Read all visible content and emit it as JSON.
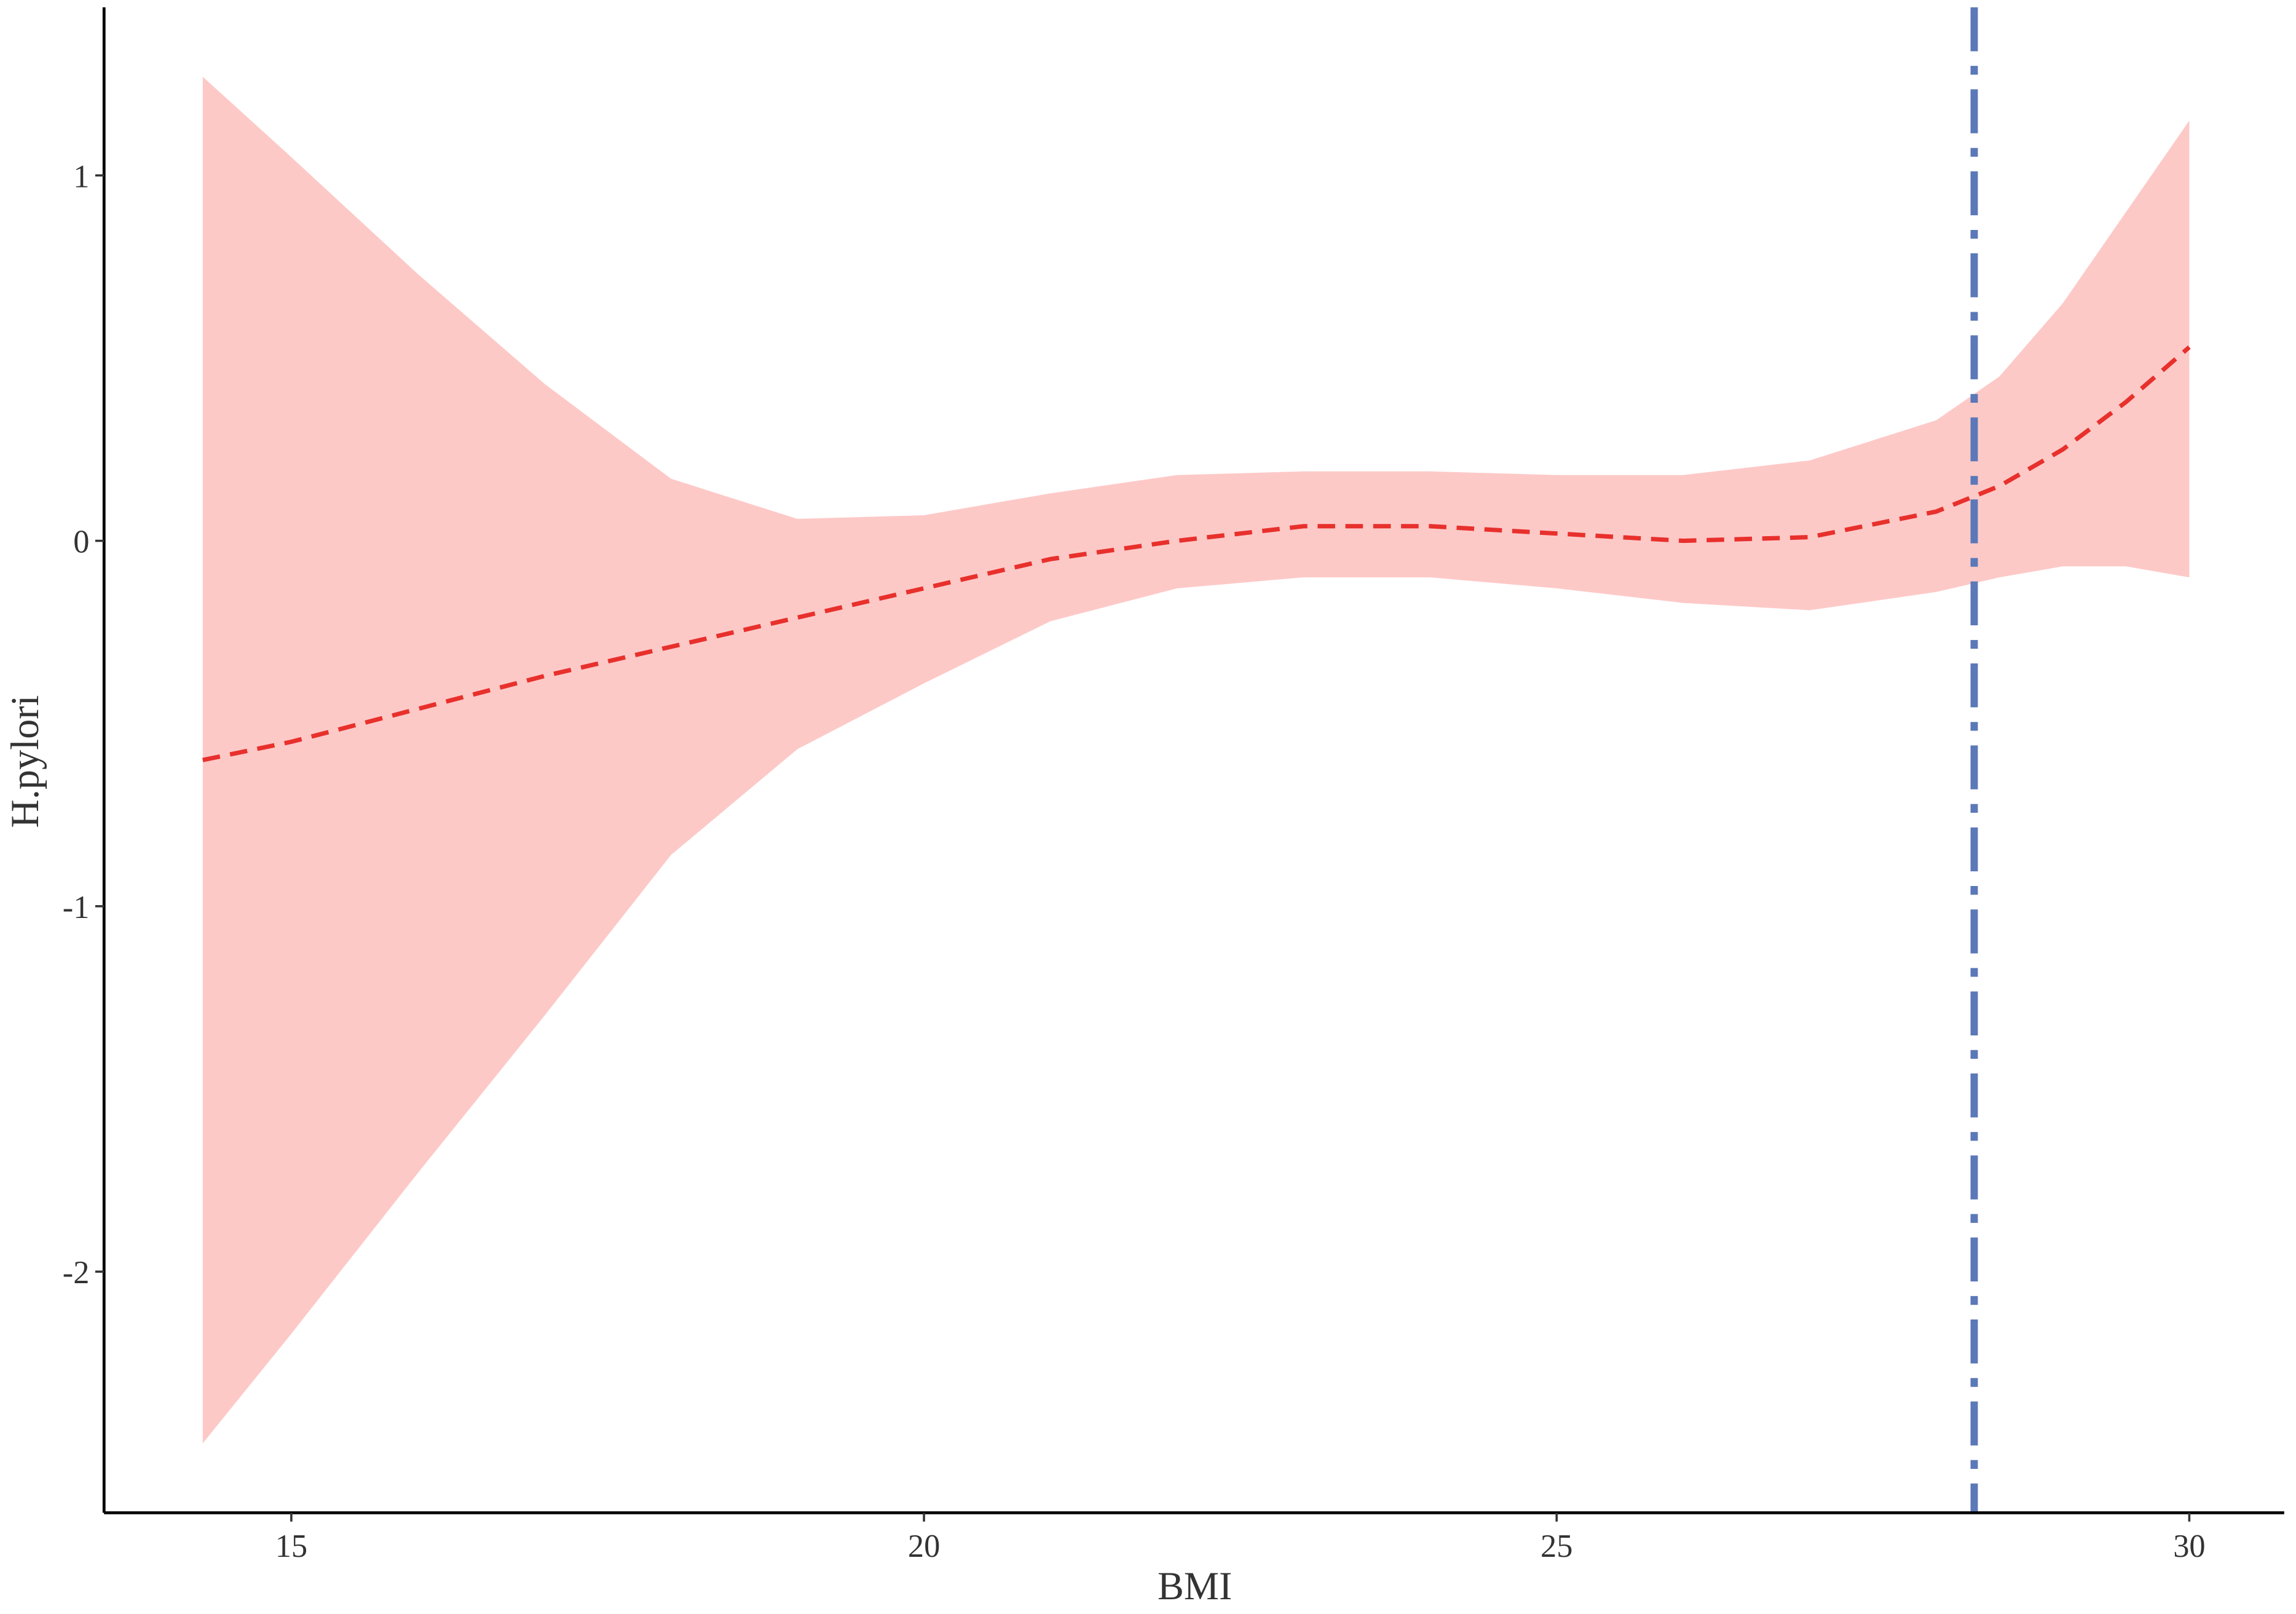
{
  "chart_data": {
    "type": "line",
    "x_label": "BMI",
    "y_label": "H.pylori",
    "x": [
      14.3,
      15,
      16,
      17,
      18,
      19,
      20,
      21,
      22,
      23,
      24,
      25,
      26,
      27,
      28,
      28.5,
      29,
      29.5,
      30
    ],
    "series": [
      {
        "color": "#e8302c",
        "values": [
          -0.6,
          -0.55,
          -0.46,
          -0.37,
          -0.29,
          -0.21,
          -0.13,
          -0.05,
          0.0,
          0.04,
          0.04,
          0.02,
          0.0,
          0.01,
          0.08,
          0.15,
          0.25,
          0.38,
          0.53
        ]
      }
    ],
    "band": {
      "color": "#fdc9c7",
      "upper": [
        1.27,
        1.05,
        0.73,
        0.43,
        0.17,
        0.06,
        0.07,
        0.13,
        0.18,
        0.19,
        0.19,
        0.18,
        0.18,
        0.22,
        0.33,
        0.45,
        0.65,
        0.9,
        1.15
      ],
      "lower": [
        -2.47,
        -2.17,
        -1.73,
        -1.3,
        -0.86,
        -0.57,
        -0.39,
        -0.22,
        -0.13,
        -0.1,
        -0.1,
        -0.13,
        -0.17,
        -0.19,
        -0.14,
        -0.1,
        -0.07,
        -0.07,
        -0.1
      ]
    },
    "vline": {
      "x": 28.3,
      "color": "#5b78b8"
    },
    "xlim": [
      13.52,
      30.75
    ],
    "ylim": [
      -2.66,
      1.46
    ],
    "xticks": [
      15,
      20,
      25,
      30
    ],
    "yticks": [
      -2,
      -1,
      0,
      1
    ]
  }
}
